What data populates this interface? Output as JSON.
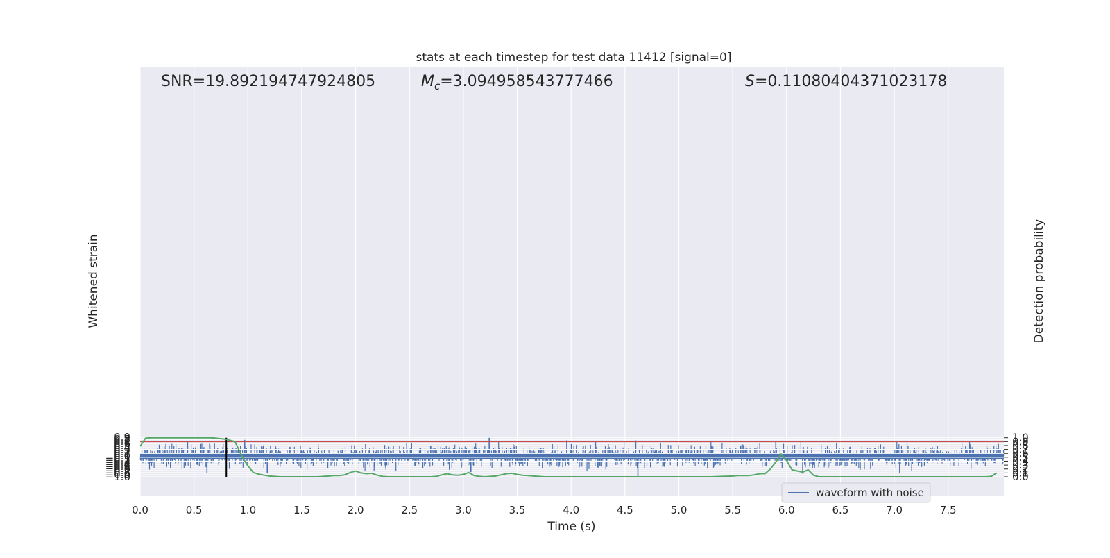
{
  "chart_data": {
    "type": "line",
    "title": "stats at each timestep for test data 11412 [signal=0]",
    "xlabel": "Time (s)",
    "ylabel_left": "Whitened strain",
    "ylabel_right": "Detection probability",
    "xlim": [
      0.0,
      8.0
    ],
    "ylim_left": [
      -1.09,
      0.98
    ],
    "ylim_right": [
      -0.05,
      1.04
    ],
    "x_ticks": [
      "0.0",
      "0.5",
      "1.0",
      "1.5",
      "2.0",
      "2.5",
      "3.0",
      "3.5",
      "4.0",
      "4.5",
      "5.0",
      "5.5",
      "6.0",
      "6.5",
      "7.0",
      "7.5"
    ],
    "y_left_ticks": [
      "0.9",
      "0.8",
      "0.7",
      "0.6",
      "0.5",
      "0.4",
      "0.3",
      "0.2",
      "0.1",
      "0.0",
      "−0.1",
      "−0.2",
      "−0.3",
      "−0.4",
      "−0.5",
      "−0.6",
      "−0.7",
      "−0.8",
      "−0.9",
      "−1.0"
    ],
    "y_right_ticks": [
      "1.0",
      "0.9",
      "0.8",
      "0.7",
      "0.6",
      "0.5",
      "0.4",
      "0.3",
      "0.2",
      "0.1",
      "0.0"
    ],
    "grid": true,
    "legend": {
      "position": "lower-right",
      "entries": [
        "waveform with noise"
      ]
    },
    "annotations": {
      "snr": {
        "prefix": "SNR",
        "value": "=19.892194747924805"
      },
      "mc": {
        "prefix": "M",
        "sub": "c",
        "value": "=3.094958543777466"
      },
      "s": {
        "prefix": "S",
        "value": "=0.11080404371023178"
      }
    },
    "threshold_line": {
      "axis": "right",
      "y": 0.9,
      "color": "#c44e52"
    },
    "marker_line": {
      "x": 0.8,
      "color": "#000000"
    },
    "colors": {
      "waveform": "#4c72b0",
      "probability": "#55a868",
      "background": "#eaeaf2",
      "grid": "#ffffff"
    },
    "series": [
      {
        "name": "waveform with noise",
        "axis": "left",
        "kind": "noise",
        "envelope_typical": [
          -0.45,
          0.45
        ],
        "notable_peaks": [
          {
            "x": 0.44,
            "y": 0.72
          },
          {
            "x": 0.97,
            "y": 0.78
          },
          {
            "x": 3.24,
            "y": 0.88
          },
          {
            "x": 3.96,
            "y": 0.76
          },
          {
            "x": 4.6,
            "y": 0.75
          },
          {
            "x": 5.9,
            "y": 0.73
          },
          {
            "x": 0.62,
            "y": -0.82
          },
          {
            "x": 1.18,
            "y": -0.81
          },
          {
            "x": 3.07,
            "y": -0.77
          },
          {
            "x": 4.62,
            "y": -1.0
          },
          {
            "x": 6.15,
            "y": -0.85
          },
          {
            "x": 7.05,
            "y": -0.81
          }
        ]
      },
      {
        "name": "detection probability",
        "axis": "right",
        "x": [
          0.0,
          0.05,
          0.1,
          0.15,
          0.2,
          0.25,
          0.3,
          0.4,
          0.5,
          0.6,
          0.65,
          0.7,
          0.8,
          0.88,
          0.95,
          1.0,
          1.05,
          1.1,
          1.15,
          1.2,
          1.3,
          1.5,
          1.6,
          1.65,
          1.7,
          1.75,
          1.8,
          1.85,
          1.9,
          1.95,
          2.0,
          2.05,
          2.1,
          2.15,
          2.2,
          2.25,
          2.3,
          2.35,
          2.4,
          2.5,
          2.6,
          2.7,
          2.75,
          2.8,
          2.85,
          2.9,
          2.95,
          3.0,
          3.05,
          3.1,
          3.15,
          3.2,
          3.25,
          3.3,
          3.35,
          3.4,
          3.45,
          3.5,
          3.55,
          3.6,
          3.7,
          3.75,
          3.8,
          3.85,
          3.9,
          4.0,
          4.2,
          4.5,
          4.7,
          5.0,
          5.2,
          5.3,
          5.4,
          5.5,
          5.55,
          5.6,
          5.65,
          5.7,
          5.75,
          5.8,
          5.85,
          5.9,
          5.95,
          6.0,
          6.05,
          6.1,
          6.15,
          6.2,
          6.25,
          6.3,
          6.4,
          6.5,
          6.6,
          6.7,
          6.8,
          7.0,
          7.1,
          7.2,
          7.3,
          7.5,
          7.6,
          7.7,
          7.8,
          7.85,
          7.9,
          7.95
        ],
        "y": [
          0.78,
          0.99,
          1.0,
          1.0,
          1.0,
          1.0,
          1.0,
          1.0,
          1.0,
          1.0,
          1.0,
          0.99,
          0.96,
          0.9,
          0.5,
          0.28,
          0.11,
          0.07,
          0.04,
          0.02,
          0.0,
          0.0,
          0.0,
          0.0,
          0.01,
          0.02,
          0.03,
          0.03,
          0.05,
          0.11,
          0.15,
          0.1,
          0.08,
          0.09,
          0.04,
          0.01,
          0.0,
          0.0,
          0.0,
          0.0,
          0.0,
          0.0,
          0.01,
          0.05,
          0.08,
          0.05,
          0.04,
          0.06,
          0.11,
          0.03,
          0.01,
          0.0,
          0.01,
          0.02,
          0.05,
          0.08,
          0.09,
          0.06,
          0.04,
          0.03,
          0.01,
          0.0,
          0.0,
          0.0,
          0.0,
          0.0,
          0.0,
          0.0,
          0.0,
          0.0,
          0.0,
          0.0,
          0.01,
          0.02,
          0.03,
          0.03,
          0.03,
          0.05,
          0.08,
          0.08,
          0.2,
          0.38,
          0.58,
          0.42,
          0.18,
          0.15,
          0.12,
          0.18,
          0.04,
          0.0,
          0.0,
          0.0,
          0.0,
          0.0,
          0.0,
          0.0,
          0.0,
          0.0,
          0.0,
          0.0,
          0.0,
          0.0,
          0.0,
          0.0,
          0.01,
          0.1
        ]
      }
    ]
  }
}
